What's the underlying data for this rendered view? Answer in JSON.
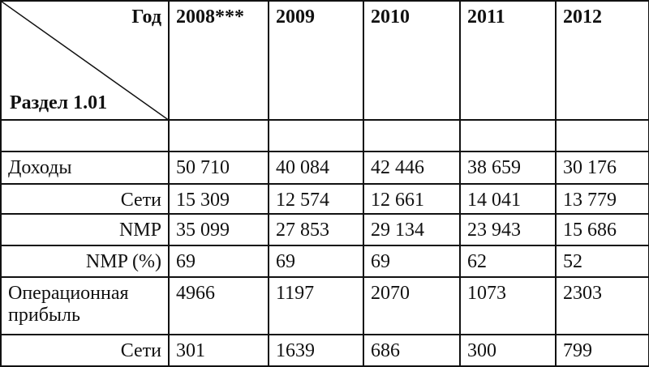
{
  "table": {
    "corner_top": "Год",
    "corner_bottom": "Раздел 1.01",
    "years": [
      "2008***",
      "2009",
      "2010",
      "2011",
      "2012"
    ],
    "rows": [
      {
        "label": "Доходы",
        "cells": [
          "50 710",
          "40 084",
          "42 446",
          "38 659",
          "30 176"
        ]
      },
      {
        "label": "Сети",
        "cells": [
          "15 309",
          "12 574",
          "12 661",
          "14 041",
          "13 779"
        ]
      },
      {
        "label": "NMP",
        "cells": [
          "35 099",
          "27 853",
          "29 134",
          "23 943",
          "15 686"
        ]
      },
      {
        "label": "NMP (%)",
        "cells": [
          "69",
          "69",
          "69",
          "62",
          "52"
        ]
      },
      {
        "label": "Операционная прибыль",
        "cells": [
          "4966",
          "1197",
          "2070",
          "1073",
          "2303"
        ]
      },
      {
        "label": "Сети",
        "cells": [
          "301",
          "1639",
          "686",
          "300",
          "799"
        ]
      }
    ]
  }
}
